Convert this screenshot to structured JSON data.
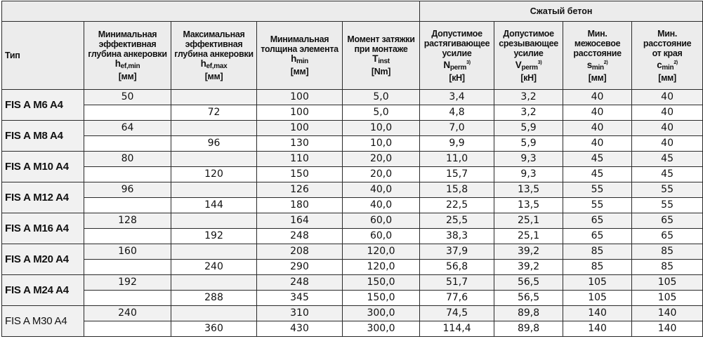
{
  "header": {
    "group_label": "Сжатый бетон",
    "type_label": "Тип",
    "min_depth": {
      "line1": "Минимальная",
      "line2": "эффективная",
      "line3": "глубина анкеровки",
      "sym": "h",
      "sub": "ef,min",
      "unit": "[мм]"
    },
    "max_depth": {
      "line1": "Максимальная",
      "line2": "эффективная",
      "line3": "глубина анкеровки",
      "sym": "h",
      "sub": "ef,max",
      "unit": "[мм]"
    },
    "min_thickness": {
      "line1": "Минимальная",
      "line2": "толщина элемента",
      "sym": "h",
      "sub": "min",
      "unit": "[мм]"
    },
    "torque": {
      "line1": "Момент затяжки",
      "line2": "при монтаже",
      "sym": "T",
      "sub": "inst",
      "unit": "[Nm]"
    },
    "tension": {
      "line1": "Допустимое",
      "line2": "растягивающее",
      "line3": "усилие",
      "sym": "N",
      "sub": "perm",
      "sup": "3)",
      "unit": "[кН]"
    },
    "shear": {
      "line1": "Допустимое",
      "line2": "срезывающее",
      "line3": "усилие",
      "sym": "V",
      "sub": "perm",
      "sup": "3)",
      "unit": "[кН]"
    },
    "spacing": {
      "line1": "Мин.",
      "line2": "межосевое",
      "line3": "расстояние",
      "sym": "s",
      "sub": "min",
      "sup": "2)",
      "unit": "[мм]"
    },
    "edge": {
      "line1": "Мин.",
      "line2": "расстояние",
      "line3": "от края",
      "sym": "c",
      "sub": "min",
      "sup": "2)",
      "unit": "[мм]"
    }
  },
  "rows": [
    {
      "type": "FIS A M6 A4",
      "r1": [
        "50",
        "",
        "100",
        "5,0",
        "3,4",
        "3,2",
        "40",
        "40"
      ],
      "r2": [
        "",
        "72",
        "100",
        "5,0",
        "4,8",
        "3,2",
        "40",
        "40"
      ]
    },
    {
      "type": "FIS A M8 A4",
      "r1": [
        "64",
        "",
        "100",
        "10,0",
        "7,0",
        "5,9",
        "40",
        "40"
      ],
      "r2": [
        "",
        "96",
        "130",
        "10,0",
        "9,9",
        "5,9",
        "40",
        "40"
      ]
    },
    {
      "type": "FIS A M10 A4",
      "r1": [
        "80",
        "",
        "110",
        "20,0",
        "11,0",
        "9,3",
        "45",
        "45"
      ],
      "r2": [
        "",
        "120",
        "150",
        "20,0",
        "15,7",
        "9,3",
        "45",
        "45"
      ]
    },
    {
      "type": "FIS A M12 A4",
      "r1": [
        "96",
        "",
        "126",
        "40,0",
        "15,8",
        "13,5",
        "55",
        "55"
      ],
      "r2": [
        "",
        "144",
        "180",
        "40,0",
        "22,5",
        "13,5",
        "55",
        "55"
      ]
    },
    {
      "type": "FIS A M16 A4",
      "r1": [
        "128",
        "",
        "164",
        "60,0",
        "25,5",
        "25,1",
        "65",
        "65"
      ],
      "r2": [
        "",
        "192",
        "248",
        "60,0",
        "38,3",
        "25,1",
        "65",
        "65"
      ]
    },
    {
      "type": "FIS A M20 A4",
      "r1": [
        "160",
        "",
        "208",
        "120,0",
        "37,9",
        "39,2",
        "85",
        "85"
      ],
      "r2": [
        "",
        "240",
        "290",
        "120,0",
        "56,8",
        "39,2",
        "85",
        "85"
      ]
    },
    {
      "type": "FIS A M24 A4",
      "r1": [
        "192",
        "",
        "248",
        "150,0",
        "51,7",
        "56,5",
        "105",
        "105"
      ],
      "r2": [
        "",
        "288",
        "345",
        "150,0",
        "77,6",
        "56,5",
        "105",
        "105"
      ]
    },
    {
      "type": "FIS A M30 A4",
      "r1": [
        "240",
        "",
        "310",
        "300,0",
        "74,5",
        "89,8",
        "140",
        "140"
      ],
      "r2": [
        "",
        "360",
        "430",
        "300,0",
        "114,4",
        "89,8",
        "140",
        "140"
      ]
    }
  ]
}
